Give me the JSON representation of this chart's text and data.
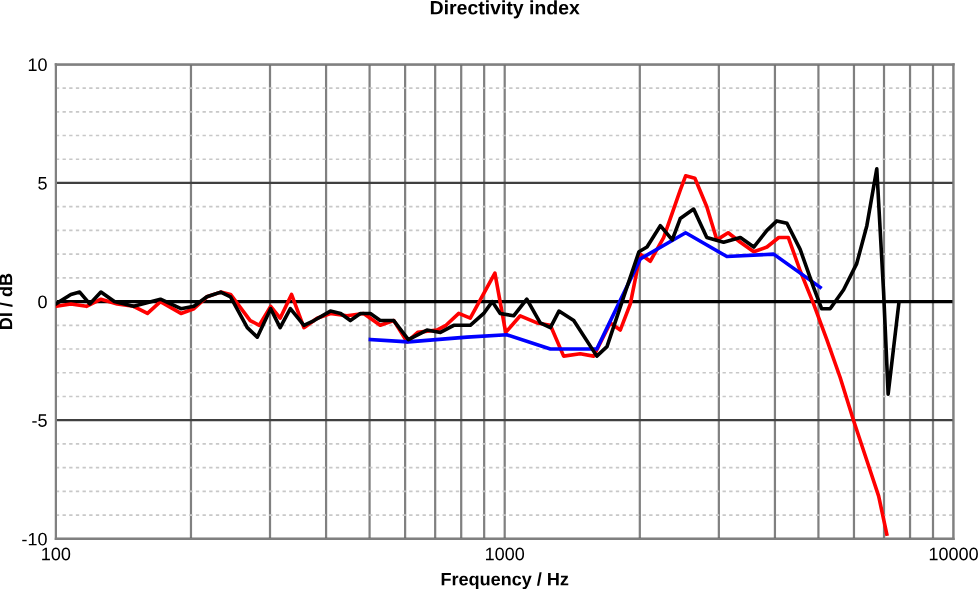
{
  "chart_data": {
    "type": "line",
    "title": "Directivity index",
    "xlabel": "Frequency / Hz",
    "ylabel": "DI / dB",
    "log": "x",
    "xlim": [
      100,
      10000
    ],
    "xticks": [
      100,
      1000,
      10000
    ],
    "ylim": [
      -10,
      10
    ],
    "yticks": [
      -10,
      -5,
      0,
      5,
      10
    ],
    "grid": true,
    "legend": false,
    "marker": "none",
    "line_style": "solid",
    "ref_lines": [
      {
        "axis": "y",
        "value": 0,
        "color": "#000000"
      }
    ],
    "series": [
      {
        "color": "#ff0000",
        "x": [
          100,
          108,
          117,
          126,
          137,
          149,
          160,
          171,
          190,
          203,
          217,
          233,
          245,
          271,
          284,
          301,
          316,
          335,
          357,
          382,
          409,
          445,
          485,
          528,
          566,
          606,
          640,
          706,
          740,
          790,
          838,
          951,
          1005,
          1083,
          1180,
          1264,
          1353,
          1473,
          1578,
          1719,
          1809,
          1905,
          2005,
          2110,
          2260,
          2461,
          2530,
          2653,
          2820,
          2970,
          3147,
          3350,
          3589,
          3840,
          4080,
          4285,
          4553,
          4877,
          5220,
          5590,
          5985,
          6410,
          6810,
          7100
        ],
        "values": [
          -0.2,
          -0.1,
          -0.2,
          0.1,
          -0.1,
          -0.2,
          -0.5,
          0,
          -0.5,
          -0.3,
          0.2,
          0.4,
          0.3,
          -0.8,
          -1.0,
          -0.2,
          -0.7,
          0.3,
          -1.1,
          -0.7,
          -0.5,
          -0.6,
          -0.5,
          -1.0,
          -0.8,
          -1.7,
          -1.3,
          -1.2,
          -1.0,
          -0.5,
          -0.7,
          1.2,
          -1.3,
          -0.6,
          -0.9,
          -1.0,
          -2.3,
          -2.2,
          -2.3,
          -0.9,
          -1.2,
          -0.1,
          2.0,
          1.7,
          2.7,
          4.7,
          5.3,
          5.2,
          4.0,
          2.6,
          2.9,
          2.5,
          2.1,
          2.3,
          2.7,
          2.7,
          1.3,
          -0.1,
          -1.6,
          -3.2,
          -5.0,
          -6.7,
          -8.2,
          -9.8
        ]
      },
      {
        "color": "#0000ff",
        "x": [
          502,
          610,
          824,
          1011,
          1264,
          1604,
          2005,
          2530,
          3126,
          3973,
          5045
        ],
        "values": [
          -1.6,
          -1.7,
          -1.5,
          -1.4,
          -2.0,
          -2.0,
          1.8,
          2.9,
          1.9,
          2.0,
          0.6
        ]
      },
      {
        "color": "#000000",
        "x": [
          100,
          108,
          113,
          119,
          126,
          135,
          149,
          171,
          190,
          203,
          217,
          233,
          245,
          267,
          281,
          301,
          316,
          333,
          357,
          376,
          409,
          431,
          453,
          477,
          502,
          528,
          566,
          610,
          671,
          719,
          770,
          838,
          898,
          938,
          977,
          1047,
          1120,
          1200,
          1264,
          1321,
          1425,
          1604,
          1690,
          1841,
          1991,
          2075,
          2222,
          2362,
          2461,
          2636,
          2820,
          3074,
          3350,
          3589,
          3840,
          4040,
          4254,
          4553,
          4877,
          5082,
          5310,
          5690,
          6085,
          6410,
          6745,
          6985,
          7150,
          7550
        ],
        "values": [
          -0.1,
          0.3,
          0.4,
          -0.1,
          0.4,
          0,
          -0.2,
          0.1,
          -0.3,
          -0.2,
          0.2,
          0.4,
          0.2,
          -1.1,
          -1.5,
          -0.3,
          -1.1,
          -0.3,
          -1.0,
          -0.8,
          -0.4,
          -0.5,
          -0.8,
          -0.5,
          -0.5,
          -0.8,
          -0.8,
          -1.6,
          -1.2,
          -1.3,
          -1.0,
          -1.0,
          -0.5,
          0,
          -0.5,
          -0.6,
          0.1,
          -0.9,
          -1.1,
          -0.4,
          -0.8,
          -2.3,
          -1.9,
          0.2,
          2.1,
          2.3,
          3.2,
          2.6,
          3.5,
          3.9,
          2.7,
          2.5,
          2.7,
          2.3,
          3.0,
          3.4,
          3.3,
          2.2,
          0.6,
          -0.3,
          -0.3,
          0.5,
          1.6,
          3.2,
          5.6,
          0.4,
          -3.9,
          -0.1
        ]
      }
    ]
  }
}
